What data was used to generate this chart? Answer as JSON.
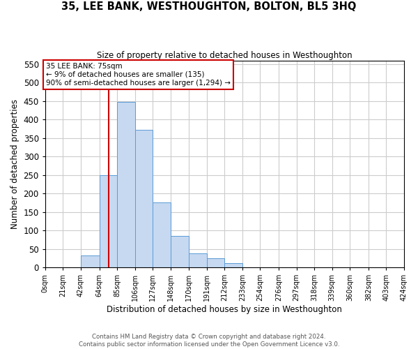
{
  "title": "35, LEE BANK, WESTHOUGHTON, BOLTON, BL5 3HQ",
  "subtitle": "Size of property relative to detached houses in Westhoughton",
  "xlabel": "Distribution of detached houses by size in Westhoughton",
  "ylabel": "Number of detached properties",
  "footer_lines": [
    "Contains HM Land Registry data © Crown copyright and database right 2024.",
    "Contains public sector information licensed under the Open Government Licence v3.0."
  ],
  "annotation_title": "35 LEE BANK: 75sqm",
  "annotation_line1": "← 9% of detached houses are smaller (135)",
  "annotation_line2": "90% of semi-detached houses are larger (1,294) →",
  "property_line_x": 75,
  "bin_edges": [
    0,
    21,
    42,
    64,
    85,
    106,
    127,
    148,
    170,
    191,
    212,
    233,
    254,
    276,
    297,
    318,
    339,
    360,
    382,
    403,
    424
  ],
  "bin_counts": [
    0,
    0,
    33,
    250,
    448,
    372,
    176,
    85,
    37,
    25,
    12,
    0,
    0,
    0,
    0,
    0,
    0,
    0,
    0,
    0
  ],
  "bar_color": "#c6d9f1",
  "bar_edge_color": "#5a9bd5",
  "property_line_color": "#cc0000",
  "annotation_box_color": "#ffffff",
  "annotation_box_edge_color": "#cc0000",
  "grid_color": "#cccccc",
  "ylim": [
    0,
    560
  ],
  "yticks": [
    0,
    50,
    100,
    150,
    200,
    250,
    300,
    350,
    400,
    450,
    500,
    550
  ],
  "tick_labels": [
    "0sqm",
    "21sqm",
    "42sqm",
    "64sqm",
    "85sqm",
    "106sqm",
    "127sqm",
    "148sqm",
    "170sqm",
    "191sqm",
    "212sqm",
    "233sqm",
    "254sqm",
    "276sqm",
    "297sqm",
    "318sqm",
    "339sqm",
    "360sqm",
    "382sqm",
    "403sqm",
    "424sqm"
  ]
}
